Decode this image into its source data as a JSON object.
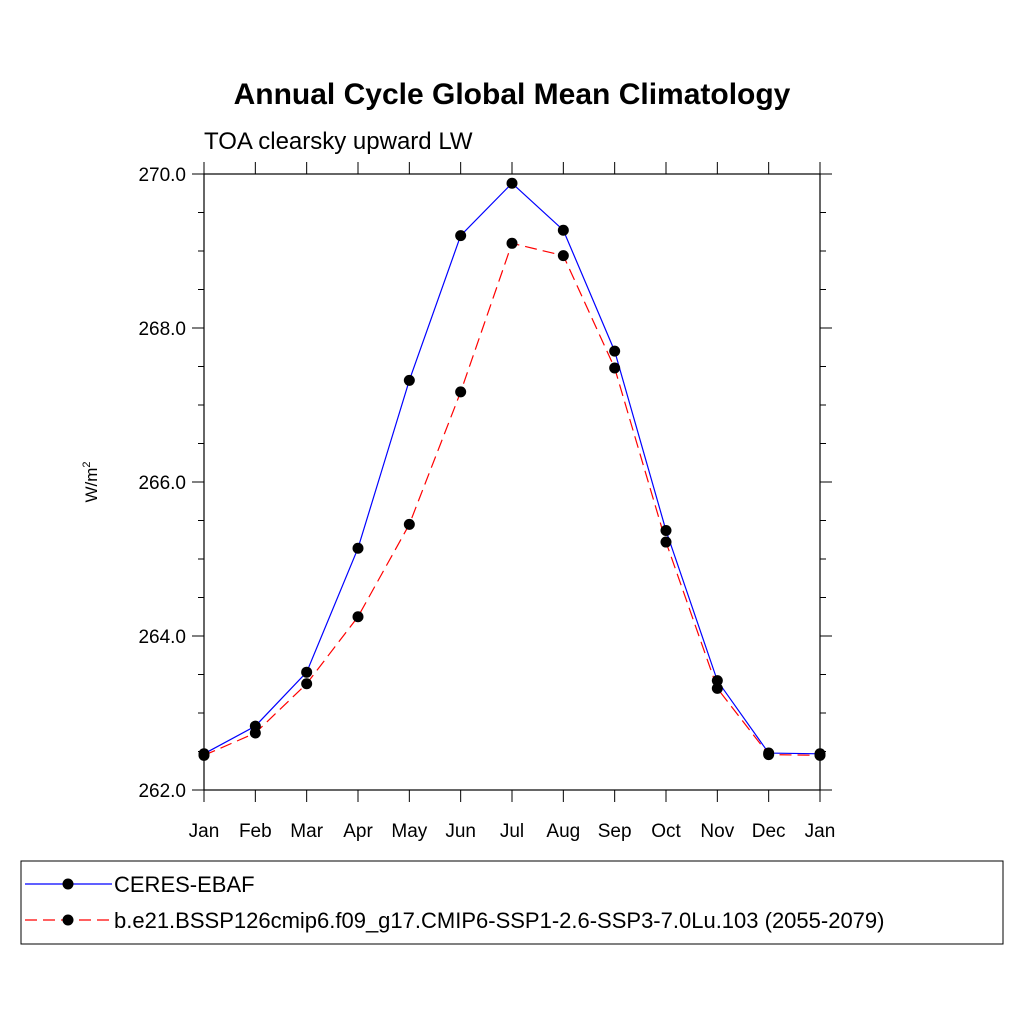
{
  "chart_data": {
    "type": "line",
    "title": "Annual Cycle Global Mean Climatology",
    "subtitle": "TOA clearsky upward LW",
    "ylabel": "W/m",
    "ylabel_superscript": "2",
    "categories": [
      "Jan",
      "Feb",
      "Mar",
      "Apr",
      "May",
      "Jun",
      "Jul",
      "Aug",
      "Sep",
      "Oct",
      "Nov",
      "Dec",
      "Jan"
    ],
    "ylim": [
      262.0,
      270.0
    ],
    "yticks": [
      "262.0",
      "264.0",
      "266.0",
      "268.0",
      "270.0"
    ],
    "grid": false,
    "legend_position": "bottom",
    "series": [
      {
        "name": "CERES-EBAF",
        "color": "#0000ff",
        "line_style": "solid",
        "marker": "filled-circle",
        "values": [
          262.47,
          262.83,
          263.53,
          265.14,
          267.32,
          269.2,
          269.88,
          269.27,
          267.7,
          265.37,
          263.42,
          262.48,
          262.47
        ]
      },
      {
        "name": "b.e21.BSSP126cmip6.f09_g17.CMIP6-SSP1-2.6-SSP3-7.0Lu.103 (2055-2079)",
        "color": "#ff0000",
        "line_style": "dashed",
        "marker": "filled-circle",
        "values": [
          262.45,
          262.74,
          263.38,
          264.25,
          265.45,
          267.17,
          269.1,
          268.94,
          267.48,
          265.22,
          263.32,
          262.46,
          262.45
        ]
      }
    ]
  }
}
